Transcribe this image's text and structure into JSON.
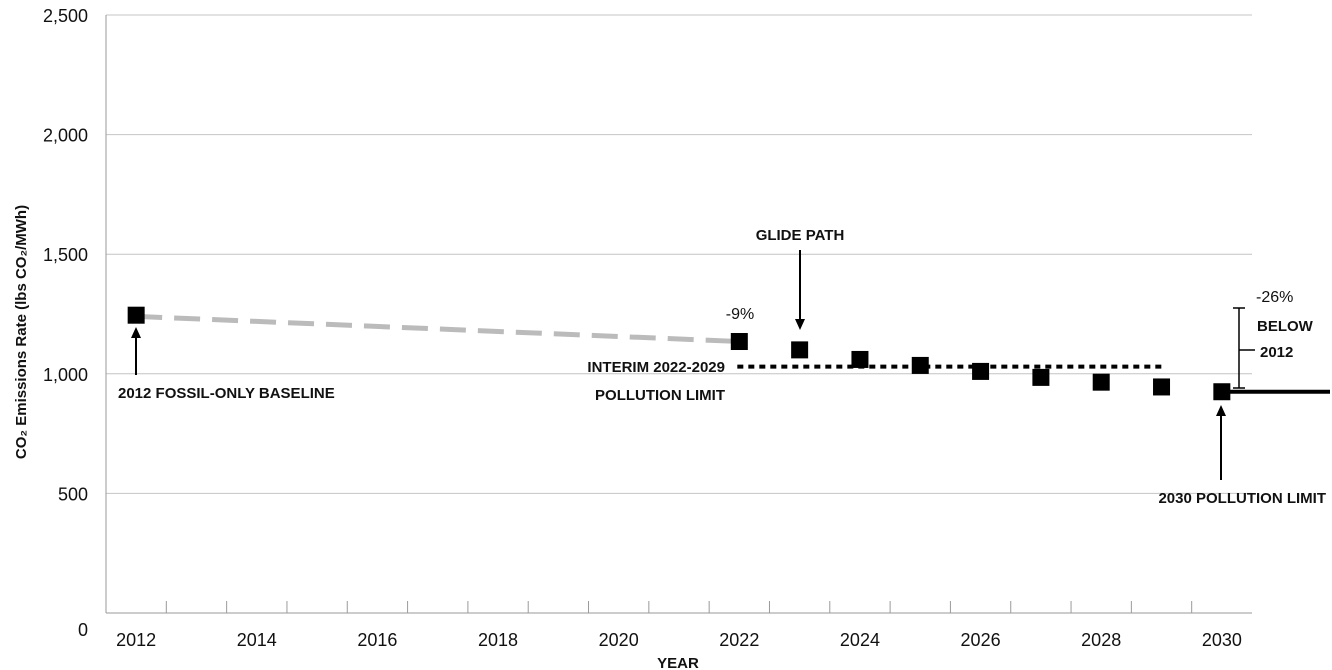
{
  "chart_data": {
    "type": "scatter",
    "title": "",
    "xlabel": "YEAR",
    "ylabel": "CO₂ Emissions Rate (lbs CO₂/MWh)",
    "xlim": [
      2011.5,
      2030.5
    ],
    "ylim": [
      0,
      2500
    ],
    "x_ticks": [
      "2012",
      "2014",
      "2016",
      "2018",
      "2020",
      "2022",
      "2024",
      "2026",
      "2028",
      "2030"
    ],
    "y_ticks": [
      "0",
      "500",
      "1,000",
      "1,500",
      "2,000",
      "2,500"
    ],
    "grid": "horizontal",
    "series": [
      {
        "marker": "square",
        "color": "#000000",
        "x": [
          2012,
          2022,
          2023,
          2024,
          2025,
          2026,
          2027,
          2028,
          2029,
          2030
        ],
        "values": [
          1245,
          1135,
          1100,
          1060,
          1035,
          1010,
          985,
          965,
          945,
          925
        ]
      }
    ],
    "lines": [
      {
        "style": "dashed-gray",
        "color": "#bbbbbb",
        "x": [
          2012,
          2022
        ],
        "y": [
          1240,
          1135
        ]
      },
      {
        "style": "dotted-black",
        "color": "#000000",
        "x": [
          2022,
          2029
        ],
        "y": [
          1030,
          1030
        ]
      },
      {
        "style": "solid-black",
        "color": "#000000",
        "x": [
          2030,
          2030.4
        ],
        "y": [
          925,
          925
        ]
      }
    ],
    "annotations": {
      "baseline": "2012 FOSSIL-ONLY BASELINE",
      "glide_path": "GLIDE PATH",
      "interim_line1": "INTERIM 2022-2029",
      "interim_line2": "POLLUTION LIMIT",
      "final_limit": "2030 POLLUTION LIMIT",
      "pct_2022": "-9%",
      "pct_2030_line1": "-26%",
      "pct_2030_line2": "BELOW",
      "pct_2030_line3": "2012"
    }
  }
}
